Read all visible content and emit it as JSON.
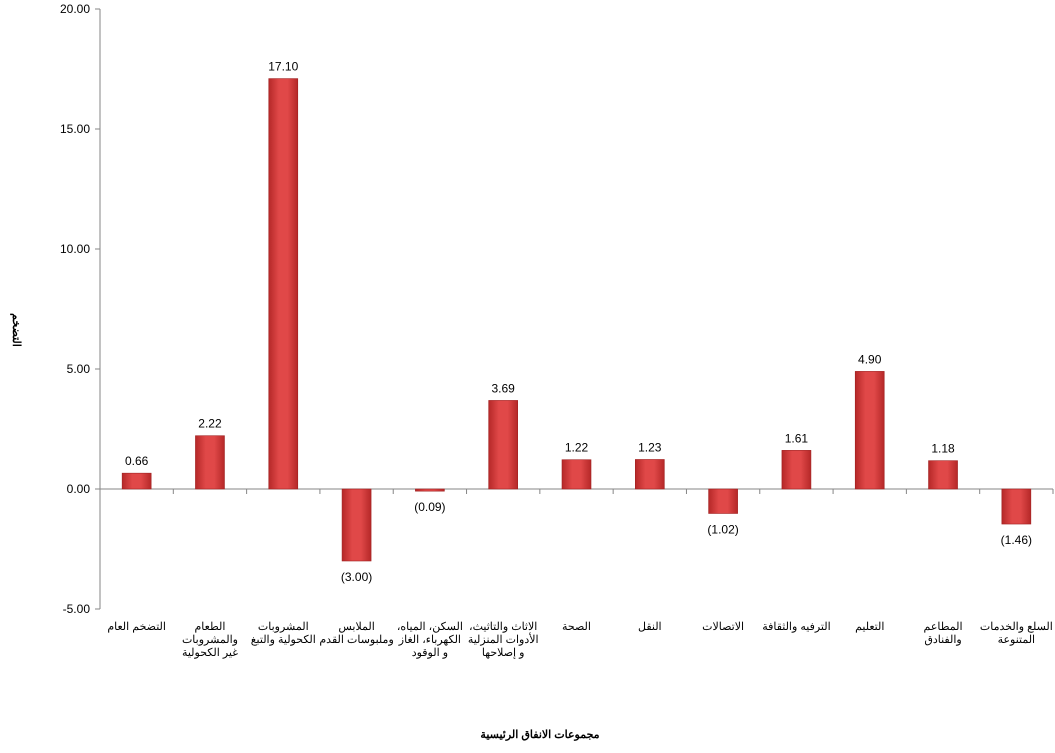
{
  "chart_data": {
    "type": "bar",
    "xlabel": "مجموعات الانفاق الرئيسية",
    "ylabel": "التضخم",
    "ylim": [
      -5,
      20
    ],
    "yticks": [
      "-5.00",
      "0.00",
      "5.00",
      "10.00",
      "15.00",
      "20.00"
    ],
    "ytick_values": [
      -5,
      0,
      5,
      10,
      15,
      20
    ],
    "grid": false,
    "legend": "none",
    "bar_color": "#d93c3c",
    "bar_color_dark": "#b02525",
    "categories": [
      [
        "التضخم العام"
      ],
      [
        "الطعام",
        "والمشروبات",
        "غير الكحولية"
      ],
      [
        "المشروبات",
        "الكحولية والتبغ"
      ],
      [
        "الملابس",
        "وملبوسات القدم"
      ],
      [
        "السكن، المياه،",
        "الكهرباء، الغاز",
        "و الوقود"
      ],
      [
        "الاثاث والتاثيث،",
        "الأدوات المنزلية",
        "و إصلاحها"
      ],
      [
        "الصحة"
      ],
      [
        "النقل"
      ],
      [
        "الاتصالات"
      ],
      [
        "الترفيه والثقافة"
      ],
      [
        "التعليم"
      ],
      [
        "المطاعم",
        "والفنادق"
      ],
      [
        "السلع والخدمات",
        "المتنوعة"
      ]
    ],
    "values": [
      0.66,
      2.22,
      17.1,
      -3.0,
      -0.09,
      3.69,
      1.22,
      1.23,
      -1.02,
      1.61,
      4.9,
      1.18,
      -1.46
    ],
    "data_labels": [
      "0.66",
      "2.22",
      "17.10",
      "(3.00)",
      "(0.09)",
      "3.69",
      "1.22",
      "1.23",
      "(1.02)",
      "1.61",
      "4.90",
      "1.18",
      "(1.46)"
    ]
  }
}
